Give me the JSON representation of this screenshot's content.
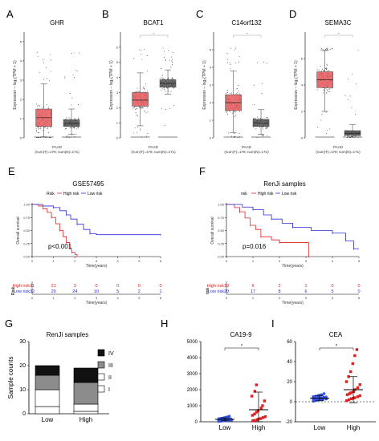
{
  "panel_labels": [
    "A",
    "B",
    "C",
    "D",
    "E",
    "F",
    "G",
    "H",
    "I"
  ],
  "colors": {
    "tumor": "#e8595c",
    "normal": "#555555",
    "high": "#e02020",
    "low": "#2a2ad8",
    "dot_blue": "#2f50e0",
    "dot_red": "#e02020"
  },
  "chart_data": [
    {
      "id": "A",
      "type": "box",
      "title": "GHR",
      "ylabel": "Expression – log₂(TPM + 1)",
      "ylim": [
        0,
        5.5
      ],
      "yticks": [
        0,
        1,
        2,
        3,
        4,
        5
      ],
      "groups": [
        {
          "name": "T",
          "q1": 0.6,
          "median": 1.05,
          "q3": 1.5,
          "lo": 0.05,
          "hi": 2.8,
          "color": "tumor"
        },
        {
          "name": "N",
          "q1": 0.6,
          "median": 0.75,
          "q3": 0.95,
          "lo": 0.2,
          "hi": 1.5,
          "color": "normal"
        }
      ],
      "xlabel": "PAAD",
      "sublabel": "(num(T)=179; num(N)=171)",
      "signif": false
    },
    {
      "id": "B",
      "type": "box",
      "title": "BCAT1",
      "ylabel": "Expression – log₂(TPM + 1)",
      "ylim": [
        0,
        7
      ],
      "yticks": [
        0,
        1,
        2,
        3,
        4,
        5,
        6
      ],
      "groups": [
        {
          "name": "T",
          "q1": 2.1,
          "median": 2.5,
          "q3": 3.0,
          "lo": 0.8,
          "hi": 4.3,
          "color": "tumor"
        },
        {
          "name": "N",
          "q1": 3.35,
          "median": 3.6,
          "q3": 3.85,
          "lo": 2.9,
          "hi": 4.5,
          "color": "normal"
        }
      ],
      "xlabel": "PAAD",
      "sublabel": "(num(T)=179; num(N)=171)",
      "signif": true
    },
    {
      "id": "C",
      "type": "box",
      "title": "C14orf132",
      "ylabel": "Expression – log₂(TPM + 1)",
      "ylim": [
        0,
        6
      ],
      "yticks": [
        0,
        1,
        2,
        3,
        4,
        5
      ],
      "groups": [
        {
          "name": "T",
          "q1": 1.55,
          "median": 2.0,
          "q3": 2.45,
          "lo": 0.3,
          "hi": 3.8,
          "color": "tumor"
        },
        {
          "name": "N",
          "q1": 0.65,
          "median": 0.85,
          "q3": 1.05,
          "lo": 0.2,
          "hi": 1.6,
          "color": "normal"
        }
      ],
      "xlabel": "PAAD",
      "sublabel": "(num(T)=179; num(N)=171)",
      "signif": true
    },
    {
      "id": "D",
      "type": "box",
      "title": "SEMA3C",
      "ylabel": "Expression – log₂(TPM + 1)",
      "ylim": [
        0,
        8
      ],
      "yticks": [
        0,
        2,
        4,
        6
      ],
      "groups": [
        {
          "name": "T",
          "q1": 3.8,
          "median": 4.4,
          "q3": 5.0,
          "lo": 2.0,
          "hi": 6.6,
          "color": "tumor"
        },
        {
          "name": "N",
          "q1": 0.2,
          "median": 0.35,
          "q3": 0.55,
          "lo": 0.05,
          "hi": 1.0,
          "color": "normal"
        }
      ],
      "xlabel": "PAAD",
      "sublabel": "(num(T)=179; num(N)=171)",
      "signif": true
    },
    {
      "id": "E",
      "type": "line",
      "title": "GSE57495",
      "ylabel": "Overall survival",
      "xlabel": "Time(years)",
      "xlim": [
        0,
        6
      ],
      "ylim": [
        0,
        1
      ],
      "xticks": [
        0,
        1,
        2,
        3,
        4,
        5,
        6
      ],
      "yticks": [
        "0.00",
        "0.25",
        "0.50",
        "0.75",
        "1.00"
      ],
      "legend": {
        "title": "Risk",
        "items": [
          "High risk",
          "Low risk"
        ]
      },
      "pvalue": "p<0.001",
      "series": [
        {
          "name": "High risk",
          "color": "high",
          "points": [
            [
              0,
              1
            ],
            [
              0.3,
              0.97
            ],
            [
              0.5,
              0.92
            ],
            [
              0.7,
              0.85
            ],
            [
              0.9,
              0.75
            ],
            [
              1.1,
              0.63
            ],
            [
              1.3,
              0.5
            ],
            [
              1.45,
              0.38
            ],
            [
              1.6,
              0.27
            ],
            [
              1.75,
              0.15
            ],
            [
              1.85,
              0.08
            ],
            [
              2.0,
              0.04
            ],
            [
              2.1,
              0.02
            ]
          ]
        },
        {
          "name": "Low risk",
          "color": "low",
          "points": [
            [
              0,
              1
            ],
            [
              0.5,
              0.97
            ],
            [
              1.0,
              0.94
            ],
            [
              1.3,
              0.88
            ],
            [
              1.6,
              0.8
            ],
            [
              1.8,
              0.72
            ],
            [
              2.1,
              0.62
            ],
            [
              2.4,
              0.52
            ],
            [
              2.7,
              0.44
            ],
            [
              3.0,
              0.42
            ],
            [
              6.0,
              0.42
            ]
          ]
        }
      ],
      "risk_table": {
        "label": "Risk",
        "title": "Time(years)",
        "rows": [
          {
            "name": "High risk",
            "color": "high",
            "values": [
              "31",
              "21",
              "3",
              "0",
              "0",
              "0",
              "0"
            ]
          },
          {
            "name": "Low risk",
            "color": "low",
            "values": [
              "32",
              "29",
              "24",
              "10",
              "5",
              "2",
              "1"
            ]
          }
        ],
        "ticks": [
          "0",
          "1",
          "2",
          "3",
          "4",
          "5",
          "6"
        ]
      }
    },
    {
      "id": "F",
      "type": "line",
      "title": "RenJi samples",
      "ylabel": "Overall survival",
      "xlabel": "Time(years)",
      "xlim": [
        0,
        5
      ],
      "ylim": [
        0,
        1
      ],
      "xticks": [
        0,
        1,
        2,
        3,
        4,
        5
      ],
      "yticks": [
        "0.00",
        "0.25",
        "0.50",
        "0.75",
        "1.00"
      ],
      "legend": {
        "title": "risk",
        "items": [
          "High risk",
          "Low risk"
        ]
      },
      "pvalue": "p=0.016",
      "series": [
        {
          "name": "High risk",
          "color": "high",
          "points": [
            [
              0,
              1
            ],
            [
              0.3,
              0.94
            ],
            [
              0.5,
              0.86
            ],
            [
              0.7,
              0.74
            ],
            [
              0.9,
              0.6
            ],
            [
              1.1,
              0.52
            ],
            [
              1.3,
              0.38
            ],
            [
              1.7,
              0.32
            ],
            [
              2.0,
              0.27
            ],
            [
              3.1,
              0.27
            ],
            [
              3.1,
              0.0
            ]
          ]
        },
        {
          "name": "Low risk",
          "color": "low",
          "points": [
            [
              0,
              1
            ],
            [
              0.6,
              0.95
            ],
            [
              1.0,
              0.9
            ],
            [
              1.4,
              0.8
            ],
            [
              1.7,
              0.72
            ],
            [
              2.1,
              0.64
            ],
            [
              2.5,
              0.56
            ],
            [
              3.2,
              0.5
            ],
            [
              4.0,
              0.45
            ],
            [
              4.5,
              0.3
            ],
            [
              4.8,
              0.15
            ],
            [
              5.0,
              0.15
            ]
          ]
        }
      ],
      "risk_table": {
        "label": "risk",
        "title": "Time(years)",
        "rows": [
          {
            "name": "High risk",
            "color": "high",
            "values": [
              "19",
              "6",
              "2",
              "1",
              "0",
              "0"
            ]
          },
          {
            "name": "Low risk",
            "color": "low",
            "values": [
              "20",
              "17",
              "8",
              "6",
              "5",
              "0"
            ]
          }
        ],
        "ticks": [
          "0",
          "1",
          "2",
          "3",
          "4",
          "5"
        ]
      }
    },
    {
      "id": "G",
      "type": "bar",
      "title": "RenJi samples",
      "stacked": true,
      "ylabel": "Sample counts",
      "ylim": [
        0,
        30
      ],
      "yticks": [
        0,
        10,
        20,
        30
      ],
      "categories": [
        "Low",
        "High"
      ],
      "series": [
        {
          "name": "I",
          "color": "#ffffff",
          "values": [
            3,
            1
          ]
        },
        {
          "name": "II",
          "color": "#ffffff",
          "values": [
            7,
            3
          ]
        },
        {
          "name": "III",
          "color": "#8c8c8c",
          "values": [
            6,
            9
          ]
        },
        {
          "name": "IV",
          "color": "#111111",
          "values": [
            4,
            6
          ]
        }
      ],
      "legend_order": [
        "IV",
        "III",
        "II",
        "I"
      ]
    },
    {
      "id": "H",
      "type": "scatter",
      "title": "CA19-9",
      "ylim": [
        0,
        5000
      ],
      "yticks": [
        0,
        1000,
        2000,
        3000,
        4000,
        5000
      ],
      "categories": [
        "Low",
        "High"
      ],
      "signif_label": "*",
      "groups": [
        {
          "name": "Low",
          "color": "dot_blue",
          "mean": 150,
          "sd": 90,
          "values": [
            20,
            40,
            60,
            70,
            80,
            90,
            100,
            110,
            120,
            130,
            140,
            150,
            160,
            170,
            190,
            210,
            230,
            260,
            300,
            340
          ]
        },
        {
          "name": "High",
          "color": "dot_red",
          "mean": 750,
          "sd": 1100,
          "values": [
            50,
            80,
            120,
            160,
            200,
            260,
            320,
            400,
            480,
            600,
            700,
            850,
            1000,
            1300,
            1600,
            1900,
            2300
          ]
        }
      ]
    },
    {
      "id": "I",
      "type": "scatter",
      "title": "CEA",
      "ylim": [
        -20,
        60
      ],
      "yticks": [
        -20,
        0,
        20,
        40,
        60
      ],
      "categories": [
        "Low",
        "High"
      ],
      "signif_label": "*",
      "groups": [
        {
          "name": "Low",
          "color": "dot_blue",
          "mean": 3.5,
          "sd": 2.5,
          "values": [
            0.5,
            1,
            1.5,
            2,
            2.2,
            2.5,
            2.8,
            3,
            3.2,
            3.5,
            3.8,
            4,
            4.3,
            4.7,
            5,
            5.5,
            6,
            6.5,
            7,
            8
          ]
        },
        {
          "name": "High",
          "color": "dot_red",
          "mean": 12,
          "sd": 13,
          "values": [
            1,
            2,
            3,
            3.5,
            4,
            5,
            6,
            7,
            8,
            9,
            10,
            12,
            14,
            17,
            20,
            25,
            30,
            38,
            46,
            52
          ]
        }
      ]
    }
  ]
}
